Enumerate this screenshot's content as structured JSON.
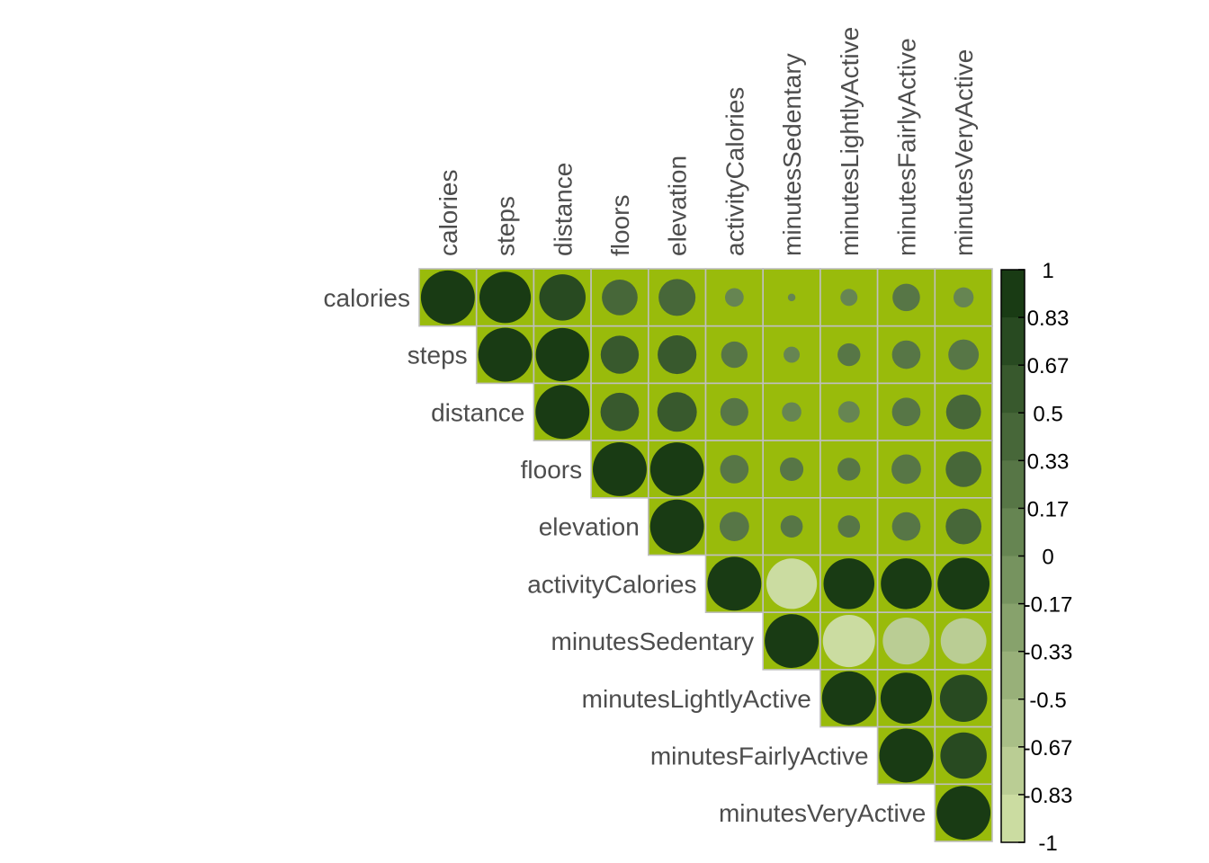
{
  "chart_data": {
    "type": "heatmap",
    "subtype": "correlation-circles-upper-triangle",
    "variables": [
      "calories",
      "steps",
      "distance",
      "floors",
      "elevation",
      "activityCalories",
      "minutesSedentary",
      "minutesLightlyActive",
      "minutesFairlyActive",
      "minutesVeryActive"
    ],
    "matrix": [
      [
        1.0,
        0.91,
        0.74,
        0.44,
        0.47,
        0.12,
        0.02,
        0.1,
        0.26,
        0.14
      ],
      [
        0.91,
        1.0,
        0.98,
        0.5,
        0.52,
        0.24,
        0.09,
        0.18,
        0.28,
        0.32
      ],
      [
        0.74,
        0.98,
        1.0,
        0.51,
        0.54,
        0.27,
        0.13,
        0.16,
        0.28,
        0.42
      ],
      [
        0.44,
        0.5,
        0.51,
        1.0,
        0.99,
        0.28,
        0.19,
        0.18,
        0.3,
        0.44
      ],
      [
        0.47,
        0.52,
        0.54,
        0.99,
        1.0,
        0.3,
        0.17,
        0.17,
        0.28,
        0.44
      ],
      [
        0.12,
        0.24,
        0.27,
        0.28,
        0.3,
        1.0,
        -0.88,
        0.89,
        0.89,
        0.93
      ],
      [
        0.02,
        0.09,
        0.13,
        0.19,
        0.17,
        -0.88,
        1.0,
        -0.94,
        -0.76,
        -0.72
      ],
      [
        0.1,
        0.18,
        0.16,
        0.18,
        0.17,
        0.89,
        -0.94,
        1.0,
        0.91,
        0.77
      ],
      [
        0.26,
        0.28,
        0.28,
        0.3,
        0.28,
        0.89,
        -0.76,
        0.91,
        1.0,
        0.74
      ],
      [
        0.14,
        0.32,
        0.42,
        0.44,
        0.44,
        0.93,
        -0.72,
        0.77,
        0.74,
        1.0
      ]
    ],
    "range": [
      -1,
      1
    ],
    "colorbar_ticks": [
      "1",
      "0.83",
      "0.67",
      "0.5",
      "0.33",
      "0.17",
      "0",
      "-0.17",
      "-0.33",
      "-0.5",
      "-0.67",
      "-0.83",
      "-1"
    ],
    "colors": {
      "tile_background": "#99bb0b",
      "tile_border": "#bfbfbf",
      "high": "#11340e",
      "mid": "#6e8c58",
      "low": "#d3e3a8"
    },
    "legend_placement": "right",
    "grid": true
  }
}
